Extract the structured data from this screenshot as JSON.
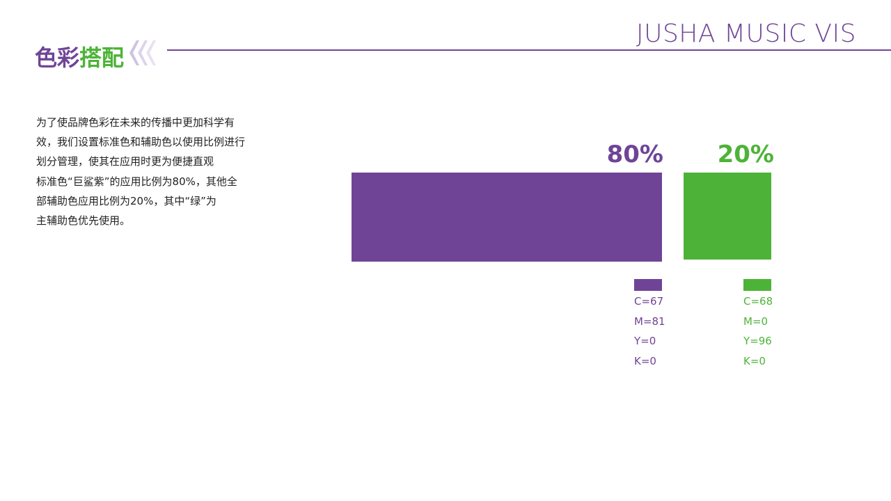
{
  "header": {
    "title_part1": "色彩",
    "title_part2": "搭配",
    "brand": "JUSHA MUSIC VIS"
  },
  "body": {
    "lines": [
      "为了使品牌色彩在未来的传播中更加科学有",
      "效，我们设置标准色和辅助色以使用比例进行",
      "划分管理，使其在应用时更为便捷直观",
      "标准色“巨鲨紫”的应用比例为80%，其他全",
      "部辅助色应用比例为20%，其中“绿”为",
      "主辅助色优先使用。"
    ]
  },
  "colors": [
    {
      "percent": "80%",
      "cmyk": [
        "C=67",
        "M=81",
        "Y=0",
        "K=0"
      ]
    },
    {
      "percent": "20%",
      "cmyk": [
        "C=68",
        "M=0",
        "Y=96",
        "K=0"
      ]
    }
  ]
}
